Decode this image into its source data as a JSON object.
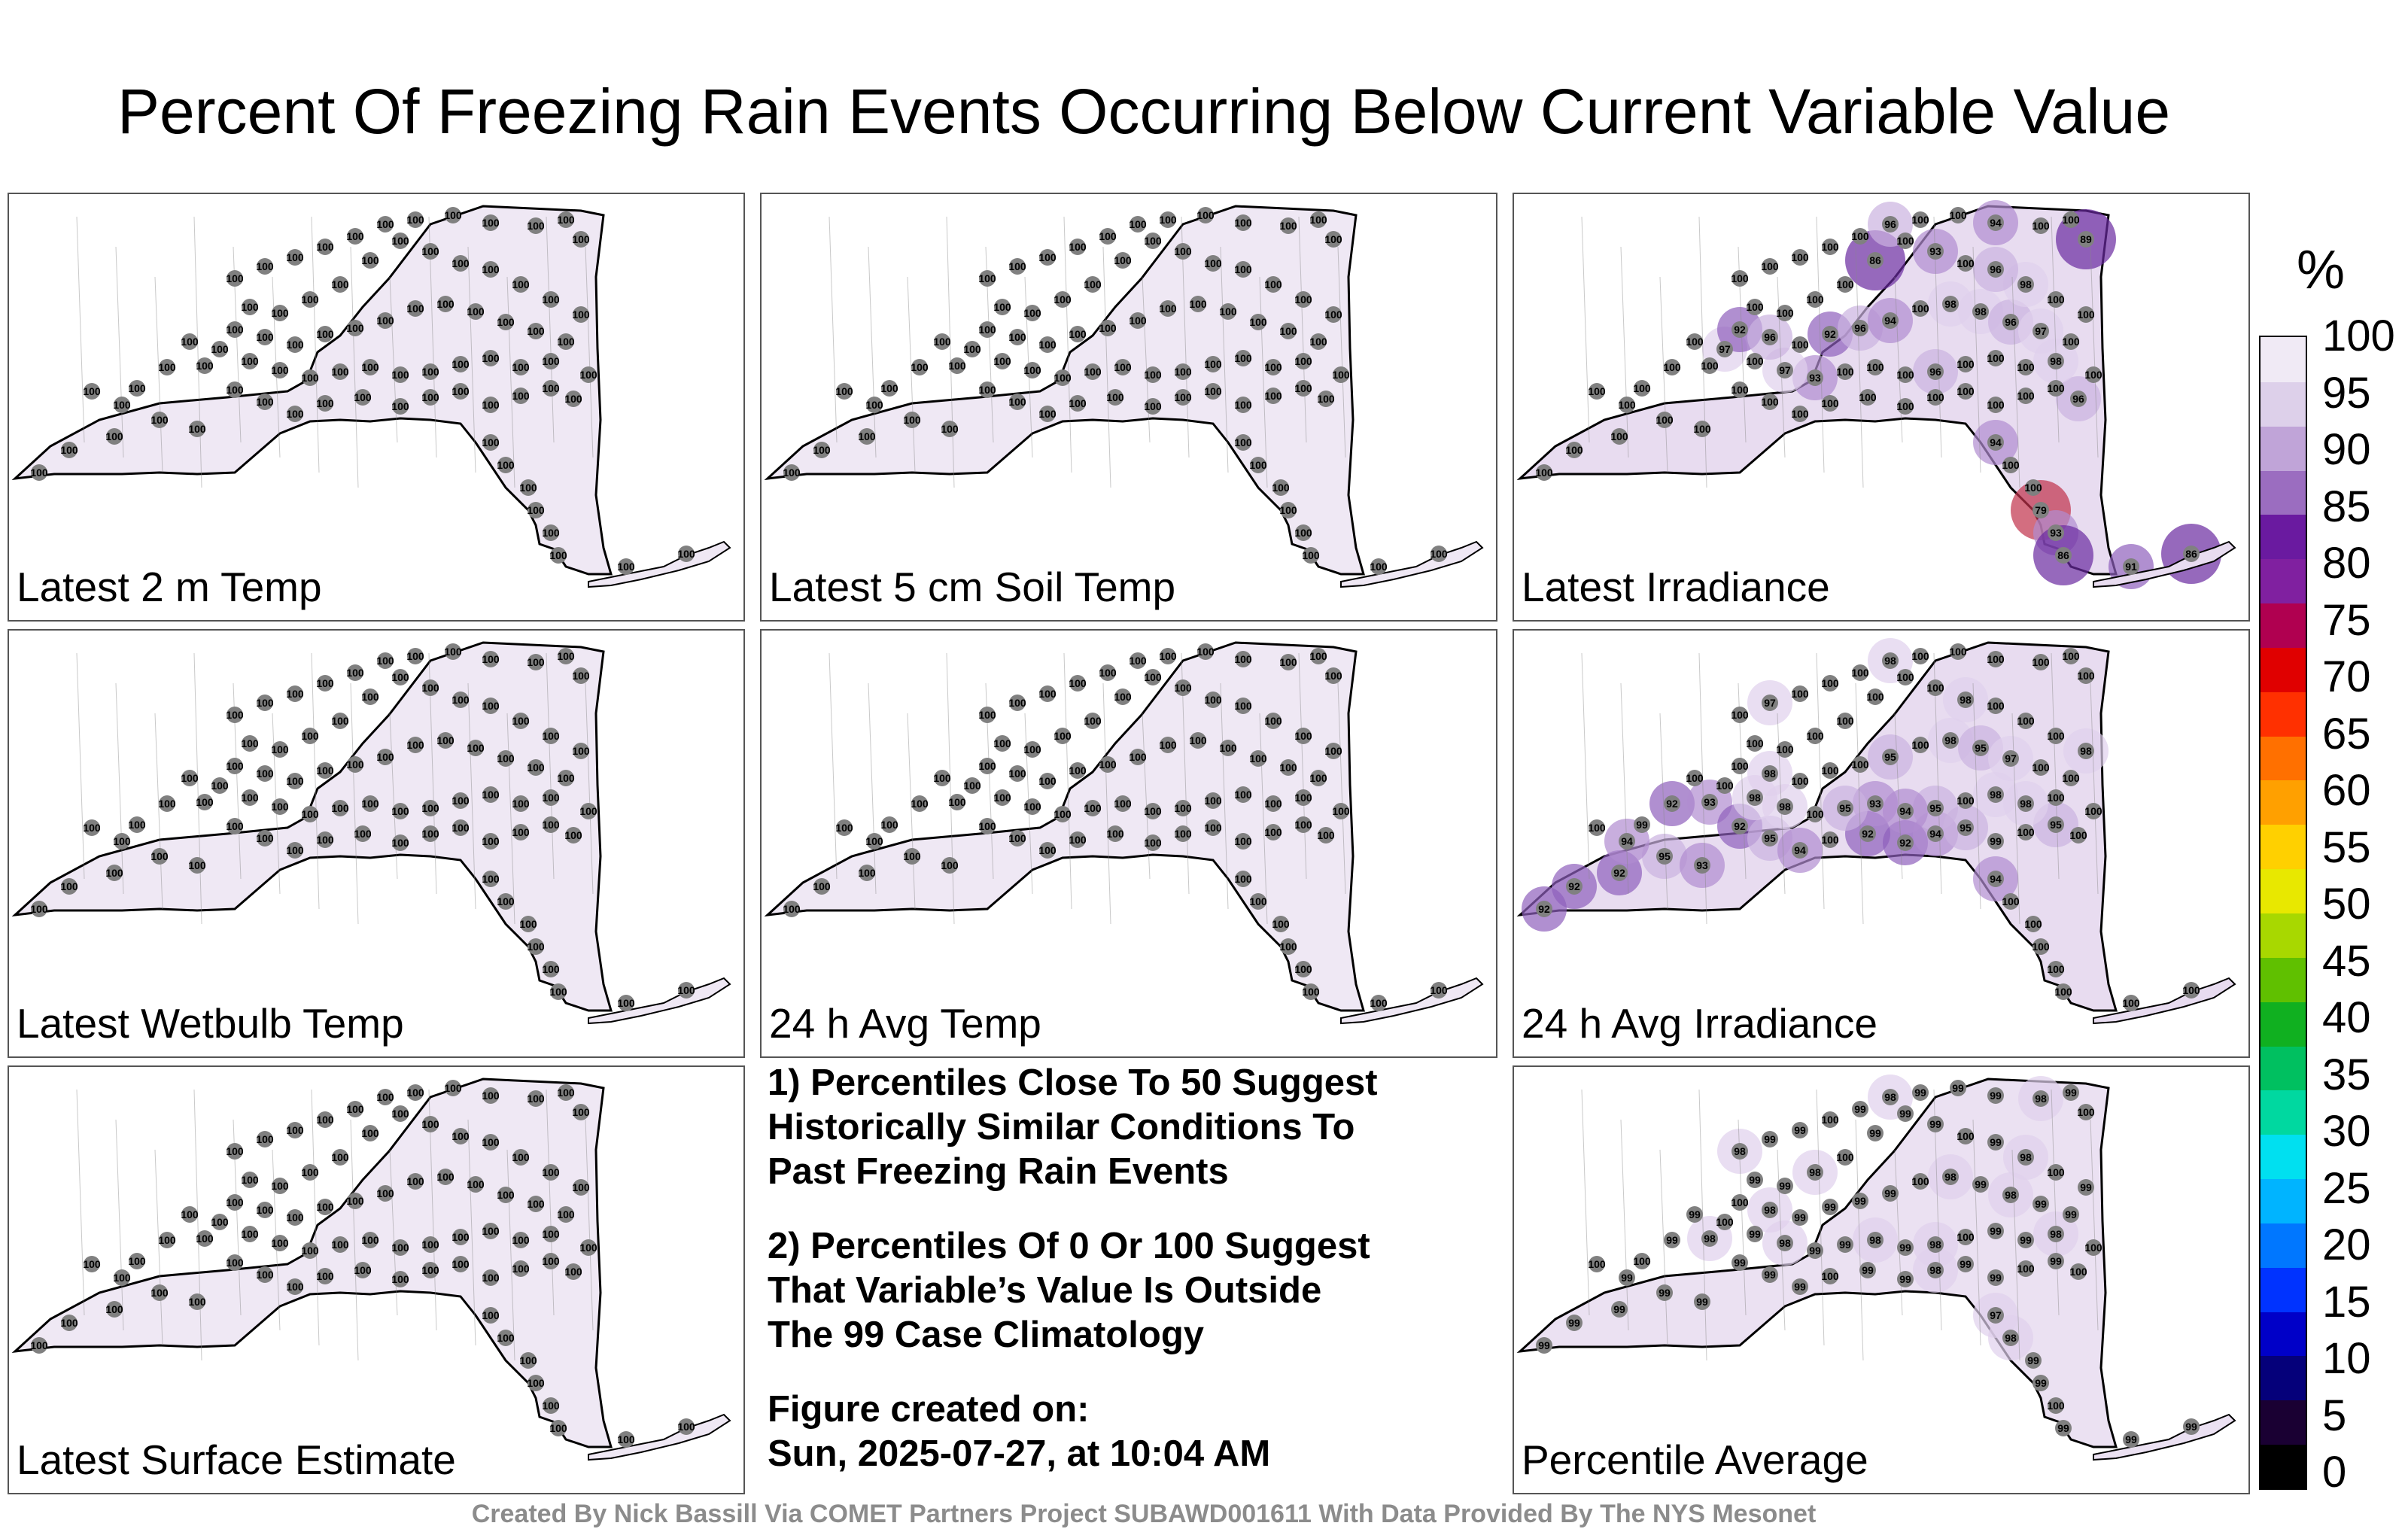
{
  "title": "Percent Of Freezing Rain Events Occurring Below Current Variable Value",
  "panels": [
    {
      "label": "Latest 2 m Temp",
      "fill": "#efe8f4",
      "stations": [
        [
          "100"
        ]
      ]
    },
    {
      "label": "Latest 5 cm Soil Temp",
      "fill": "#efe8f4"
    },
    {
      "label": "Latest Irradiance",
      "fill": "#e8dcf0"
    },
    {
      "label": "Latest Wetbulb Temp",
      "fill": "#efe8f4"
    },
    {
      "label": "24 h Avg Temp",
      "fill": "#efe8f4"
    },
    {
      "label": "24 h Avg Irradiance",
      "fill": "#e8dcf0"
    },
    {
      "label": "Latest Surface Estimate",
      "fill": "#efe8f4"
    },
    {
      "label": "Percentile Average",
      "fill": "#ebe1f2"
    }
  ],
  "station_values": {
    "p0": [
      "100",
      "100",
      "100",
      "100",
      "100",
      "100",
      "100",
      "100",
      "100",
      "100",
      "100",
      "100",
      "100",
      "100",
      "100",
      "100",
      "100",
      "100",
      "100",
      "100",
      "100",
      "100",
      "100",
      "100",
      "100",
      "100",
      "100",
      "100",
      "100",
      "100",
      "100",
      "100",
      "100",
      "100",
      "100",
      "100",
      "100",
      "100",
      "100",
      "100",
      "100",
      "100",
      "100",
      "100",
      "100",
      "100",
      "100",
      "100",
      "100",
      "100",
      "100",
      "100",
      "100",
      "100",
      "100",
      "100",
      "100",
      "100",
      "100",
      "100",
      "100",
      "100",
      "100",
      "100",
      "100",
      "100",
      "100",
      "100",
      "100",
      "100",
      "100",
      "100",
      "100",
      "100",
      "100",
      "100",
      "100",
      "100",
      "100",
      "100"
    ],
    "p1": [
      "100",
      "100",
      "100",
      "100",
      "100",
      "100",
      "100",
      "100",
      "100",
      "100",
      "100",
      "100",
      "100",
      "100",
      "100",
      "100",
      "100",
      "100",
      "100",
      "100",
      "100",
      "100",
      "100",
      "100",
      "100",
      "100",
      "100",
      "100",
      "100",
      "100",
      "100",
      "100",
      "100",
      "100",
      "100",
      "100",
      "100",
      "100",
      "100",
      "100",
      "100",
      "100",
      "100",
      "100",
      "100",
      "100",
      "100",
      "100",
      "100",
      "100",
      "100",
      "100",
      "100",
      "100",
      "100",
      "100",
      "100",
      "100",
      "100",
      "100",
      "100",
      "100",
      "100",
      "100",
      "100",
      "100",
      "100",
      "100",
      "100",
      "100",
      "100",
      "100",
      "100",
      "100",
      "100",
      "100",
      "100",
      "100",
      "100",
      "100"
    ],
    "p2": [
      "100",
      "100",
      "100",
      "100",
      "100",
      "100",
      "100",
      "100",
      "100",
      "100",
      "100",
      "100",
      "100",
      "100",
      "100",
      "100",
      "100",
      "100",
      "100",
      "100",
      "100",
      "96",
      "100",
      "98",
      "100",
      "100",
      "100",
      "96",
      "100",
      "100",
      "100",
      "93",
      "97",
      "100",
      "97",
      "100",
      "92",
      "96",
      "100",
      "92",
      "96",
      "94",
      "100",
      "98",
      "98",
      "96",
      "97",
      "100",
      "100",
      "100",
      "98",
      "96",
      "100",
      "93",
      "100",
      "86",
      "100",
      "100",
      "100",
      "100",
      "100",
      "100",
      "100",
      "100",
      "100",
      "96",
      "100",
      "100",
      "94",
      "100",
      "100",
      "89",
      "94",
      "100",
      "100",
      "79",
      "93",
      "86",
      "91",
      "86"
    ],
    "p3": [
      "100",
      "100",
      "100",
      "100",
      "100",
      "100",
      "100",
      "100",
      "100",
      "100",
      "100",
      "100",
      "100",
      "100",
      "100",
      "100",
      "100",
      "100",
      "100",
      "100",
      "100",
      "100",
      "100",
      "100",
      "100",
      "100",
      "100",
      "100",
      "100",
      "100",
      "100",
      "100",
      "100",
      "100",
      "100",
      "100",
      "100",
      "100",
      "100",
      "100",
      "100",
      "100",
      "100",
      "100",
      "100",
      "100",
      "100",
      "100",
      "100",
      "100",
      "100",
      "100",
      "100",
      "100",
      "100",
      "100",
      "100",
      "100",
      "100",
      "100",
      "100",
      "100",
      "100",
      "100",
      "100",
      "100",
      "100",
      "100",
      "100",
      "100",
      "100",
      "100",
      "100",
      "100",
      "100",
      "100",
      "100",
      "100",
      "100",
      "100"
    ],
    "p4": [
      "100",
      "100",
      "100",
      "100",
      "100",
      "100",
      "100",
      "100",
      "100",
      "100",
      "100",
      "100",
      "100",
      "100",
      "100",
      "100",
      "100",
      "100",
      "100",
      "100",
      "100",
      "100",
      "100",
      "100",
      "100",
      "100",
      "100",
      "100",
      "100",
      "100",
      "100",
      "100",
      "100",
      "100",
      "100",
      "100",
      "100",
      "100",
      "100",
      "100",
      "100",
      "100",
      "100",
      "100",
      "100",
      "100",
      "100",
      "100",
      "100",
      "100",
      "100",
      "100",
      "100",
      "100",
      "100",
      "100",
      "100",
      "100",
      "100",
      "100",
      "100",
      "100",
      "100",
      "100",
      "100",
      "100",
      "100",
      "100",
      "100",
      "100",
      "100",
      "100",
      "100",
      "100",
      "100",
      "100",
      "100",
      "100",
      "100",
      "100"
    ],
    "p5": [
      "92",
      "92",
      "92",
      "95",
      "93",
      "94",
      "100",
      "99",
      "92",
      "93",
      "92",
      "95",
      "94",
      "100",
      "92",
      "92",
      "94",
      "95",
      "99",
      "100",
      "95",
      "100",
      "100",
      "100",
      "98",
      "98",
      "100",
      "95",
      "94",
      "93",
      "95",
      "100",
      "98",
      "98",
      "100",
      "100",
      "100",
      "98",
      "100",
      "100",
      "100",
      "95",
      "100",
      "98",
      "95",
      "97",
      "100",
      "100",
      "98",
      "100",
      "100",
      "100",
      "98",
      "100",
      "100",
      "100",
      "100",
      "100",
      "100",
      "100",
      "100",
      "97",
      "100",
      "100",
      "100",
      "98",
      "100",
      "100",
      "100",
      "100",
      "100",
      "100",
      "94",
      "100",
      "100",
      "100",
      "100",
      "100",
      "100",
      "100"
    ],
    "p6": [
      "100",
      "100",
      "100",
      "100",
      "100",
      "100",
      "100",
      "100",
      "100",
      "100",
      "100",
      "100",
      "100",
      "100",
      "100",
      "100",
      "100",
      "100",
      "100",
      "100",
      "100",
      "100",
      "100",
      "100",
      "100",
      "100",
      "100",
      "100",
      "100",
      "100",
      "100",
      "100",
      "100",
      "100",
      "100",
      "100",
      "100",
      "100",
      "100",
      "100",
      "100",
      "100",
      "100",
      "100",
      "100",
      "100",
      "100",
      "100",
      "100",
      "100",
      "100",
      "100",
      "100",
      "100",
      "100",
      "100",
      "100",
      "100",
      "100",
      "100",
      "100",
      "100",
      "100",
      "100",
      "100",
      "100",
      "100",
      "100",
      "100",
      "100",
      "100",
      "100",
      "100",
      "100",
      "100",
      "100",
      "100",
      "100",
      "100",
      "100"
    ],
    "p7": [
      "99",
      "99",
      "99",
      "99",
      "99",
      "99",
      "100",
      "100",
      "99",
      "98",
      "99",
      "99",
      "99",
      "100",
      "99",
      "99",
      "98",
      "99",
      "99",
      "100",
      "99",
      "100",
      "100",
      "98",
      "99",
      "99",
      "100",
      "98",
      "99",
      "98",
      "99",
      "99",
      "98",
      "99",
      "100",
      "99",
      "100",
      "98",
      "99",
      "99",
      "99",
      "99",
      "100",
      "98",
      "99",
      "98",
      "99",
      "99",
      "99",
      "100",
      "98",
      "99",
      "100",
      "99",
      "99",
      "99",
      "100",
      "98",
      "99",
      "99",
      "98",
      "99",
      "99",
      "100",
      "99",
      "98",
      "99",
      "99",
      "99",
      "98",
      "99",
      "100",
      "97",
      "98",
      "99",
      "99",
      "100",
      "99",
      "99",
      "99"
    ]
  },
  "notes": {
    "note1": "1) Percentiles Close To 50 Suggest\nHistorically Similar Conditions To\nPast Freezing Rain Events",
    "note2": "2) Percentiles Of 0 Or 100 Suggest\nThat Variable’s Value Is Outside\nThe 99 Case Climatology",
    "note3": "Figure created on:\nSun, 2025-07-27, at 10:04 AM"
  },
  "credit": "Created By Nick Bassill Via COMET Partners Project SUBAWD001611 With Data Provided By The NYS Mesonet",
  "colorbar": {
    "unit": "%",
    "ticks": [
      "100",
      "95",
      "90",
      "85",
      "80",
      "75",
      "70",
      "65",
      "60",
      "55",
      "50",
      "45",
      "40",
      "35",
      "30",
      "25",
      "20",
      "15",
      "10",
      "5",
      "0"
    ],
    "colors": [
      "#000000",
      "#1a0033",
      "#05007a",
      "#0000c8",
      "#0033ff",
      "#0077ff",
      "#00b4ff",
      "#00e0f0",
      "#00d8a0",
      "#00c060",
      "#10b020",
      "#60c000",
      "#a8d800",
      "#e8e800",
      "#ffd000",
      "#ffa000",
      "#ff7000",
      "#ff3000",
      "#e00000",
      "#b00050",
      "#8020a0",
      "#6a1aa0",
      "#9b6dc0",
      "#c0a4d8",
      "#ddd0ea",
      "#f0eaf5"
    ]
  }
}
